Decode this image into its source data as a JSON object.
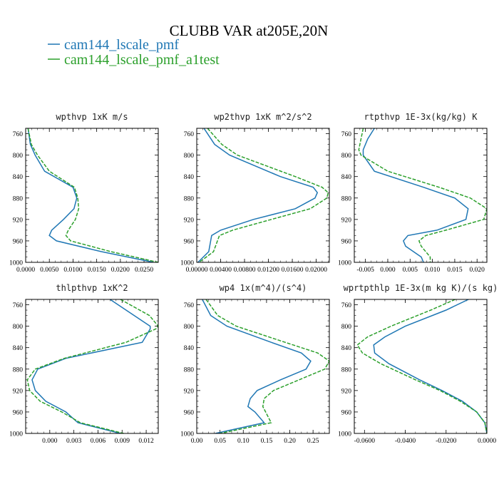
{
  "title": "CLUBB VAR at205E,20N",
  "legend": [
    {
      "label": "cam144_lscale_pmf",
      "color": "#1f77b4",
      "dash": "solid"
    },
    {
      "label": "cam144_lscale_pmf_a1test",
      "color": "#2ca02c",
      "dash": "dashed"
    }
  ],
  "chart_data": [
    {
      "type": "line",
      "title": "wpthvp  1xK m/s",
      "ylim": [
        1000,
        750
      ],
      "yticks": [
        760,
        800,
        840,
        880,
        920,
        960,
        1000
      ],
      "xlim": [
        0,
        0.028
      ],
      "xticks": [
        0,
        0.005,
        0.01,
        0.015,
        0.02,
        0.025
      ],
      "xticklabels": [
        "0.0000",
        "0.0050",
        "0.0100",
        "0.0150",
        "0.0200",
        "0.0250"
      ],
      "series": [
        {
          "y": [
            750,
            780,
            800,
            830,
            860,
            880,
            900,
            920,
            940,
            950,
            960,
            980,
            1000
          ],
          "x": [
            0.0005,
            0.001,
            0.002,
            0.004,
            0.01,
            0.0108,
            0.0102,
            0.008,
            0.0055,
            0.005,
            0.0065,
            0.016,
            0.027
          ]
        },
        {
          "y": [
            750,
            780,
            800,
            830,
            860,
            880,
            900,
            920,
            940,
            950,
            960,
            980,
            1000
          ],
          "x": [
            0.0005,
            0.0012,
            0.0025,
            0.005,
            0.0103,
            0.011,
            0.0112,
            0.0105,
            0.009,
            0.0085,
            0.0095,
            0.018,
            0.028
          ]
        }
      ]
    },
    {
      "type": "line",
      "title": "wp2thvp  1xK m^2/s^2",
      "ylim": [
        1000,
        750
      ],
      "yticks": [
        760,
        800,
        840,
        880,
        920,
        960,
        1000
      ],
      "xlim": [
        0,
        0.0222
      ],
      "xticks": [
        0,
        0.004,
        0.008,
        0.012,
        0.016,
        0.02
      ],
      "xticklabels": [
        "0.00000",
        "0.00400",
        "0.00800",
        "0.01200",
        "0.01600",
        "0.02000"
      ],
      "series": [
        {
          "y": [
            750,
            780,
            800,
            840,
            860,
            870,
            880,
            900,
            920,
            940,
            950,
            980,
            1000
          ],
          "x": [
            0.0012,
            0.003,
            0.0055,
            0.014,
            0.0195,
            0.0202,
            0.0198,
            0.0165,
            0.0095,
            0.004,
            0.0025,
            0.002,
            0.0002
          ]
        },
        {
          "y": [
            750,
            780,
            800,
            840,
            860,
            870,
            880,
            900,
            920,
            940,
            950,
            980,
            1000
          ],
          "x": [
            0.0018,
            0.0042,
            0.0068,
            0.0165,
            0.021,
            0.022,
            0.0218,
            0.019,
            0.0125,
            0.006,
            0.0038,
            0.0028,
            0.0004
          ]
        }
      ]
    },
    {
      "type": "line",
      "title": "rtpthvp  1E-3x(kg/kg) K",
      "ylim": [
        1000,
        750
      ],
      "yticks": [
        760,
        800,
        840,
        880,
        920,
        960,
        1000
      ],
      "xlim": [
        -0.0075,
        0.0222
      ],
      "xticks": [
        -0.005,
        0,
        0.005,
        0.01,
        0.015,
        0.02
      ],
      "xticklabels": [
        "-0.005",
        "0.000",
        "0.005",
        "0.010",
        "0.015",
        "0.020"
      ],
      "series": [
        {
          "y": [
            750,
            770,
            790,
            800,
            830,
            860,
            880,
            900,
            920,
            940,
            950,
            960,
            970,
            990,
            1000
          ],
          "x": [
            -0.003,
            -0.0045,
            -0.0055,
            -0.0055,
            -0.003,
            0.008,
            0.015,
            0.018,
            0.0175,
            0.011,
            0.0045,
            0.0035,
            0.004,
            0.0075,
            0.008
          ]
        },
        {
          "y": [
            750,
            770,
            790,
            800,
            830,
            860,
            880,
            900,
            920,
            940,
            950,
            960,
            970,
            990,
            1000
          ],
          "x": [
            -0.0055,
            -0.006,
            -0.0065,
            -0.006,
            0.0,
            0.0115,
            0.0185,
            0.0222,
            0.0215,
            0.013,
            0.0085,
            0.007,
            0.0075,
            0.0095,
            0.0095
          ]
        }
      ]
    },
    {
      "type": "line",
      "title": "thlpthvp  1xK^2",
      "ylim": [
        1000,
        750
      ],
      "yticks": [
        760,
        800,
        840,
        880,
        920,
        960,
        1000
      ],
      "xlim": [
        -0.003,
        0.0135
      ],
      "xticks": [
        0,
        0.003,
        0.006,
        0.009,
        0.012
      ],
      "xticklabels": [
        "0.000",
        "0.003",
        "0.006",
        "0.009",
        "0.012"
      ],
      "series": [
        {
          "y": [
            750,
            800,
            805,
            830,
            860,
            880,
            900,
            920,
            940,
            960,
            980,
            1000
          ],
          "x": [
            0.0075,
            0.0125,
            0.0125,
            0.0115,
            0.002,
            -0.0015,
            -0.0022,
            -0.0018,
            -0.0005,
            0.002,
            0.0035,
            0.0088
          ]
        },
        {
          "y": [
            750,
            780,
            800,
            805,
            830,
            860,
            880,
            900,
            920,
            940,
            960,
            980,
            1000
          ],
          "x": [
            0.0088,
            0.0124,
            0.0135,
            0.0132,
            0.0095,
            0.0018,
            -0.0018,
            -0.0028,
            -0.0025,
            -0.0012,
            0.0015,
            0.0038,
            0.0092
          ]
        }
      ]
    },
    {
      "type": "line",
      "title": "wp4  1x(m^4)/(s^4)",
      "ylim": [
        1000,
        750
      ],
      "yticks": [
        760,
        800,
        840,
        880,
        920,
        960,
        1000
      ],
      "xlim": [
        0,
        0.285
      ],
      "xticks": [
        0,
        0.05,
        0.1,
        0.15,
        0.2,
        0.25
      ],
      "xticklabels": [
        "0.00",
        "0.05",
        "0.10",
        "0.15",
        "0.20",
        "0.25"
      ],
      "series": [
        {
          "y": [
            750,
            780,
            800,
            830,
            850,
            865,
            880,
            900,
            920,
            935,
            950,
            960,
            980,
            1000
          ],
          "x": [
            0.012,
            0.03,
            0.065,
            0.16,
            0.225,
            0.245,
            0.235,
            0.18,
            0.13,
            0.115,
            0.11,
            0.125,
            0.145,
            0.04
          ]
        },
        {
          "y": [
            750,
            780,
            800,
            830,
            850,
            865,
            880,
            900,
            920,
            935,
            950,
            960,
            980,
            1000
          ],
          "x": [
            0.02,
            0.045,
            0.085,
            0.19,
            0.26,
            0.285,
            0.275,
            0.22,
            0.165,
            0.145,
            0.142,
            0.148,
            0.16,
            0.05
          ]
        }
      ]
    },
    {
      "type": "line",
      "title": "wprtpthlp  1E-3x(m kg K)/(s kg)",
      "ylim": [
        1000,
        750
      ],
      "yticks": [
        760,
        800,
        840,
        880,
        920,
        960,
        1000
      ],
      "xlim": [
        -0.065,
        0.0
      ],
      "xticks": [
        -0.06,
        -0.04,
        -0.02,
        0
      ],
      "xticklabels": [
        "-0.0600",
        "-0.0400",
        "-0.0200",
        "0.0000"
      ],
      "series": [
        {
          "y": [
            750,
            770,
            800,
            820,
            835,
            850,
            870,
            900,
            920,
            940,
            960,
            980,
            1000
          ],
          "x": [
            -0.009,
            -0.02,
            -0.04,
            -0.05,
            -0.0555,
            -0.055,
            -0.048,
            -0.033,
            -0.022,
            -0.012,
            -0.005,
            -0.001,
            0.0
          ]
        },
        {
          "y": [
            750,
            770,
            800,
            820,
            835,
            850,
            870,
            900,
            920,
            940,
            960,
            980,
            1000
          ],
          "x": [
            -0.0155,
            -0.0275,
            -0.047,
            -0.0585,
            -0.0635,
            -0.061,
            -0.052,
            -0.035,
            -0.023,
            -0.013,
            -0.005,
            -0.001,
            0.0
          ]
        }
      ]
    }
  ]
}
